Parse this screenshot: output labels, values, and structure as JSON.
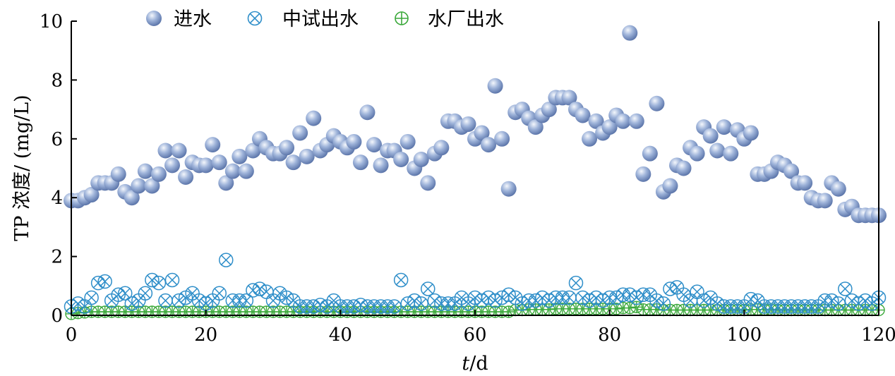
{
  "chart_data": {
    "type": "scatter",
    "xlabel_italic": "t",
    "xlabel_unit": "/d",
    "ylabel": "TP 浓度/ (mg/L)",
    "xlim": [
      0,
      120
    ],
    "ylim": [
      0,
      10
    ],
    "xticks": [
      "0",
      "20",
      "40",
      "60",
      "80",
      "100",
      "120"
    ],
    "yticks": [
      "0",
      "2",
      "4",
      "6",
      "8",
      "10"
    ],
    "legend_position": "top-left",
    "grid": false,
    "series": [
      {
        "name": "进水",
        "marker": "sphere",
        "color": "#7d96c4",
        "x": [
          0,
          1,
          2,
          3,
          4,
          5,
          6,
          7,
          8,
          9,
          10,
          11,
          12,
          13,
          14,
          15,
          16,
          17,
          18,
          19,
          20,
          21,
          22,
          23,
          24,
          25,
          26,
          27,
          28,
          29,
          30,
          31,
          32,
          33,
          34,
          35,
          36,
          37,
          38,
          39,
          40,
          41,
          42,
          43,
          44,
          45,
          46,
          47,
          48,
          49,
          50,
          51,
          52,
          53,
          54,
          55,
          56,
          57,
          58,
          59,
          60,
          61,
          62,
          63,
          64,
          65,
          66,
          67,
          68,
          69,
          70,
          71,
          72,
          73,
          74,
          75,
          76,
          77,
          78,
          79,
          80,
          81,
          82,
          83,
          84,
          85,
          86,
          87,
          88,
          89,
          90,
          91,
          92,
          93,
          94,
          95,
          96,
          97,
          98,
          99,
          100,
          101,
          102,
          103,
          104,
          105,
          106,
          107,
          108,
          109,
          110,
          111,
          112,
          113,
          114,
          115,
          116,
          117,
          118,
          119,
          120
        ],
        "y": [
          3.9,
          3.9,
          4.0,
          4.1,
          4.5,
          4.5,
          4.5,
          4.8,
          4.2,
          4.0,
          4.4,
          4.9,
          4.4,
          4.8,
          5.6,
          5.1,
          5.6,
          4.7,
          5.2,
          5.1,
          5.1,
          5.8,
          5.2,
          4.5,
          4.9,
          5.4,
          4.9,
          5.6,
          6.0,
          5.7,
          5.5,
          5.5,
          5.7,
          5.2,
          6.2,
          5.4,
          6.7,
          5.6,
          5.8,
          6.1,
          5.9,
          5.7,
          5.9,
          5.2,
          6.9,
          5.8,
          5.1,
          5.6,
          5.6,
          5.3,
          5.9,
          5.0,
          5.3,
          4.5,
          5.5,
          5.7,
          6.6,
          6.6,
          6.4,
          6.5,
          6.0,
          6.2,
          5.8,
          7.8,
          6.0,
          4.3,
          6.9,
          7.0,
          6.7,
          6.4,
          6.8,
          7.0,
          7.4,
          7.4,
          7.4,
          7.0,
          6.8,
          6.0,
          6.6,
          6.2,
          6.4,
          6.8,
          6.6,
          9.6,
          6.6,
          4.8,
          5.5,
          7.2,
          4.2,
          4.4,
          5.1,
          5.0,
          5.7,
          5.5,
          6.4,
          6.1,
          5.6,
          6.4,
          5.5,
          6.3,
          6.0,
          6.2,
          4.8,
          4.8,
          4.9,
          5.2,
          5.1,
          4.9,
          4.5,
          4.5,
          4.0,
          3.9,
          3.9,
          4.5,
          4.3,
          3.6,
          3.7,
          3.4,
          3.4,
          3.4,
          3.4
        ]
      },
      {
        "name": "中试出水",
        "marker": "circle-x",
        "color": "#2e8ec9",
        "x": [
          0,
          1,
          2,
          3,
          4,
          5,
          6,
          7,
          8,
          9,
          10,
          11,
          12,
          13,
          14,
          15,
          16,
          17,
          18,
          19,
          20,
          21,
          22,
          23,
          24,
          25,
          26,
          27,
          28,
          29,
          30,
          31,
          32,
          33,
          34,
          35,
          36,
          37,
          38,
          39,
          40,
          41,
          42,
          43,
          44,
          45,
          46,
          47,
          48,
          49,
          50,
          51,
          52,
          53,
          54,
          55,
          56,
          57,
          58,
          59,
          60,
          61,
          62,
          63,
          64,
          65,
          66,
          67,
          68,
          69,
          70,
          71,
          72,
          73,
          74,
          75,
          76,
          77,
          78,
          79,
          80,
          81,
          82,
          83,
          84,
          85,
          86,
          87,
          88,
          89,
          90,
          91,
          92,
          93,
          94,
          95,
          96,
          97,
          98,
          99,
          100,
          101,
          102,
          103,
          104,
          105,
          106,
          107,
          108,
          109,
          110,
          111,
          112,
          113,
          114,
          115,
          116,
          117,
          118,
          119,
          120
        ],
        "y": [
          0.3,
          0.4,
          0.3,
          0.6,
          1.1,
          1.15,
          0.5,
          0.7,
          0.75,
          0.4,
          0.5,
          0.75,
          1.2,
          1.1,
          0.5,
          1.2,
          0.5,
          0.6,
          0.75,
          0.5,
          0.4,
          0.5,
          0.75,
          1.88,
          0.5,
          0.5,
          0.5,
          0.85,
          0.9,
          0.8,
          0.5,
          0.75,
          0.6,
          0.5,
          0.3,
          0.3,
          0.3,
          0.35,
          0.3,
          0.5,
          0.3,
          0.3,
          0.3,
          0.35,
          0.3,
          0.3,
          0.3,
          0.3,
          0.3,
          1.2,
          0.4,
          0.5,
          0.4,
          0.9,
          0.5,
          0.4,
          0.4,
          0.4,
          0.6,
          0.4,
          0.6,
          0.5,
          0.6,
          0.5,
          0.6,
          0.7,
          0.6,
          0.4,
          0.5,
          0.5,
          0.6,
          0.5,
          0.6,
          0.6,
          0.6,
          1.1,
          0.6,
          0.5,
          0.6,
          0.5,
          0.6,
          0.6,
          0.7,
          0.7,
          0.6,
          0.7,
          0.7,
          0.5,
          0.4,
          0.9,
          0.95,
          0.7,
          0.5,
          0.8,
          0.5,
          0.6,
          0.4,
          0.3,
          0.3,
          0.3,
          0.3,
          0.55,
          0.5,
          0.3,
          0.3,
          0.3,
          0.3,
          0.3,
          0.3,
          0.3,
          0.3,
          0.3,
          0.5,
          0.5,
          0.4,
          0.9,
          0.5,
          0.4,
          0.5,
          0.4,
          0.6
        ]
      },
      {
        "name": "水厂出水",
        "marker": "circle-plus",
        "color": "#3aa83a",
        "x": [
          0,
          1,
          2,
          3,
          4,
          5,
          6,
          7,
          8,
          9,
          10,
          11,
          12,
          13,
          14,
          15,
          16,
          17,
          18,
          19,
          20,
          21,
          22,
          23,
          24,
          25,
          26,
          27,
          28,
          29,
          30,
          31,
          32,
          33,
          34,
          35,
          36,
          37,
          38,
          39,
          40,
          41,
          42,
          43,
          44,
          45,
          46,
          47,
          48,
          49,
          50,
          51,
          52,
          53,
          54,
          55,
          56,
          57,
          58,
          59,
          60,
          61,
          62,
          63,
          64,
          65,
          66,
          67,
          68,
          69,
          70,
          71,
          72,
          73,
          74,
          75,
          76,
          77,
          78,
          79,
          80,
          81,
          82,
          83,
          84,
          85,
          86,
          87,
          88,
          89,
          90,
          91,
          92,
          93,
          94,
          95,
          96,
          97,
          98,
          99,
          100,
          101,
          102,
          103,
          104,
          105,
          106,
          107,
          108,
          109,
          110,
          111,
          112,
          113,
          114,
          115,
          116,
          117,
          118,
          119,
          120
        ],
        "y": [
          0.05,
          0.08,
          0.1,
          0.12,
          0.12,
          0.12,
          0.12,
          0.12,
          0.12,
          0.12,
          0.12,
          0.12,
          0.12,
          0.12,
          0.12,
          0.12,
          0.12,
          0.12,
          0.12,
          0.12,
          0.12,
          0.12,
          0.12,
          0.12,
          0.12,
          0.12,
          0.12,
          0.12,
          0.12,
          0.12,
          0.12,
          0.12,
          0.12,
          0.12,
          0.12,
          0.12,
          0.12,
          0.12,
          0.12,
          0.12,
          0.12,
          0.12,
          0.12,
          0.12,
          0.12,
          0.12,
          0.12,
          0.12,
          0.12,
          0.12,
          0.12,
          0.12,
          0.12,
          0.12,
          0.12,
          0.12,
          0.12,
          0.12,
          0.12,
          0.12,
          0.12,
          0.12,
          0.12,
          0.12,
          0.12,
          0.12,
          0.18,
          0.18,
          0.2,
          0.2,
          0.2,
          0.2,
          0.22,
          0.22,
          0.22,
          0.22,
          0.22,
          0.22,
          0.22,
          0.22,
          0.22,
          0.22,
          0.25,
          0.25,
          0.28,
          0.2,
          0.2,
          0.2,
          0.18,
          0.18,
          0.18,
          0.18,
          0.18,
          0.18,
          0.18,
          0.18,
          0.18,
          0.18,
          0.18,
          0.18,
          0.18,
          0.2,
          0.2,
          0.2,
          0.2,
          0.18,
          0.18,
          0.18,
          0.18,
          0.18,
          0.18,
          0.18,
          0.18,
          0.18,
          0.18,
          0.18,
          0.18,
          0.18,
          0.18,
          0.18,
          0.18
        ]
      }
    ]
  }
}
